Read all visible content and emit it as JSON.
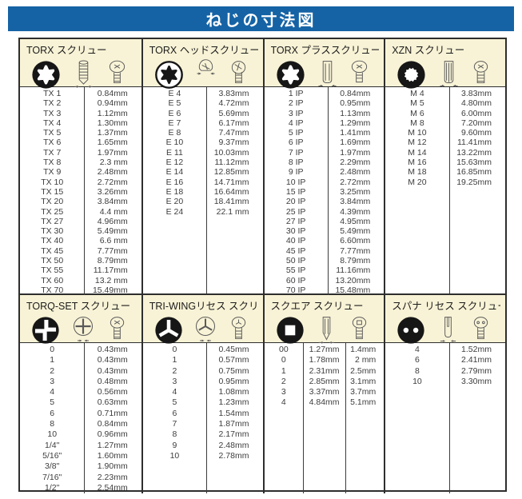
{
  "title": "ねじの寸法図",
  "unit": "mm",
  "colors": {
    "header_blue": "#1563A5",
    "section_header_bg": "#F8F3D6",
    "border": "#2e2e2e",
    "text": "#3d3d3d"
  },
  "sections": [
    {
      "title": "TORX スクリュー",
      "icons": [
        "torx-internal-drive-icon",
        "screw-side-view-icon",
        "screw-head-view-icon"
      ],
      "rows": [
        [
          "TX 1",
          "0.84mm"
        ],
        [
          "TX 2",
          "0.94mm"
        ],
        [
          "TX 3",
          "1.12mm"
        ],
        [
          "TX 4",
          "1.30mm"
        ],
        [
          "TX 5",
          "1.37mm"
        ],
        [
          "TX 6",
          "1.65mm"
        ],
        [
          "TX 7",
          "1.97mm"
        ],
        [
          "TX 8",
          "2.3 mm"
        ],
        [
          "TX 9",
          "2.48mm"
        ],
        [
          "TX 10",
          "2.72mm"
        ],
        [
          "TX 15",
          "3.26mm"
        ],
        [
          "TX 20",
          "3.84mm"
        ],
        [
          "TX 25",
          "4.4 mm"
        ],
        [
          "TX 27",
          "4.96mm"
        ],
        [
          "TX 30",
          "5.49mm"
        ],
        [
          "TX 40",
          "6.6 mm"
        ],
        [
          "TX 45",
          "7.77mm"
        ],
        [
          "TX 50",
          "8.79mm"
        ],
        [
          "TX 55",
          "11.17mm"
        ],
        [
          "TX 60",
          "13.2 mm"
        ],
        [
          "TX 70",
          "15.49mm"
        ]
      ]
    },
    {
      "title": "TORX ヘッドスクリュー",
      "icons": [
        "torx-external-drive-icon",
        "screw-side-view-icon",
        "screw-head-view-icon"
      ],
      "rows": [
        [
          "E 4",
          "3.83mm"
        ],
        [
          "E 5",
          "4.72mm"
        ],
        [
          "E 6",
          "5.69mm"
        ],
        [
          "E 7",
          "6.17mm"
        ],
        [
          "E 8",
          "7.47mm"
        ],
        [
          "E 10",
          "9.37mm"
        ],
        [
          "E 11",
          "10.03mm"
        ],
        [
          "E 12",
          "11.12mm"
        ],
        [
          "E 14",
          "12.85mm"
        ],
        [
          "E 16",
          "14.71mm"
        ],
        [
          "E 18",
          "16.64mm"
        ],
        [
          "E 20",
          "18.41mm"
        ],
        [
          "E 24",
          "22.1 mm"
        ]
      ]
    },
    {
      "title": "TORX プラススクリュー",
      "icons": [
        "torx-internal-drive-icon",
        "screw-side-view-icon",
        "screw-head-view-icon"
      ],
      "rows": [
        [
          "1 IP",
          "0.84mm"
        ],
        [
          "2 IP",
          "0.95mm"
        ],
        [
          "3 IP",
          "1.13mm"
        ],
        [
          "4 IP",
          "1.29mm"
        ],
        [
          "5 IP",
          "1.41mm"
        ],
        [
          "6 IP",
          "1.69mm"
        ],
        [
          "7 IP",
          "1.97mm"
        ],
        [
          "8 IP",
          "2.29mm"
        ],
        [
          "9 IP",
          "2.48mm"
        ],
        [
          "10 IP",
          "2.72mm"
        ],
        [
          "15 IP",
          "3.25mm"
        ],
        [
          "20 IP",
          "3.84mm"
        ],
        [
          "25 IP",
          "4.39mm"
        ],
        [
          "27 IP",
          "4.95mm"
        ],
        [
          "30 IP",
          "5.49mm"
        ],
        [
          "40 IP",
          "6.60mm"
        ],
        [
          "45 IP",
          "7.77mm"
        ],
        [
          "50 IP",
          "8.79mm"
        ],
        [
          "55 IP",
          "11.16mm"
        ],
        [
          "60 IP",
          "13.20mm"
        ],
        [
          "70 IP",
          "15.48mm"
        ]
      ]
    },
    {
      "title": "XZN スクリュー",
      "icons": [
        "xzn-drive-icon",
        "screw-side-view-icon",
        "screw-head-view-icon"
      ],
      "rows": [
        [
          "M 4",
          "3.83mm"
        ],
        [
          "M 5",
          "4.80mm"
        ],
        [
          "M 6",
          "6.00mm"
        ],
        [
          "M 8",
          "7.20mm"
        ],
        [
          "M 10",
          "9.60mm"
        ],
        [
          "M 12",
          "11.41mm"
        ],
        [
          "M 14",
          "13.22mm"
        ],
        [
          "M 16",
          "15.63mm"
        ],
        [
          "M 18",
          "16.85mm"
        ],
        [
          "M 20",
          "19.25mm"
        ]
      ]
    },
    {
      "title": "TORQ-SET スクリュー",
      "icons": [
        "torq-set-drive-icon",
        "torq-set-outline-icon",
        "screw-head-view-icon"
      ],
      "rows": [
        [
          "0",
          "0.43mm"
        ],
        [
          "1",
          "0.43mm"
        ],
        [
          "2",
          "0.43mm"
        ],
        [
          "3",
          "0.48mm"
        ],
        [
          "4",
          "0.56mm"
        ],
        [
          "5",
          "0.63mm"
        ],
        [
          "6",
          "0.71mm"
        ],
        [
          "8",
          "0.84mm"
        ],
        [
          "10",
          "0.96mm"
        ],
        [
          "1/4\"",
          "1.27mm"
        ],
        [
          "5/16\"",
          "1.60mm"
        ],
        [
          "3/8\"",
          "1.90mm"
        ],
        [
          "7/16\"",
          "2.23mm"
        ],
        [
          "1/2\"",
          "2.54mm"
        ]
      ]
    },
    {
      "title": "TRI-WINGリセス スクリュー",
      "icons": [
        "tri-wing-drive-icon",
        "tri-wing-outline-icon",
        "screw-head-view-icon"
      ],
      "rows": [
        [
          "0",
          "0.45mm"
        ],
        [
          "1",
          "0.57mm"
        ],
        [
          "2",
          "0.75mm"
        ],
        [
          "3",
          "0.95mm"
        ],
        [
          "4",
          "1.08mm"
        ],
        [
          "5",
          "1.23mm"
        ],
        [
          "6",
          "1.54mm"
        ],
        [
          "7",
          "1.87mm"
        ],
        [
          "8",
          "2.17mm"
        ],
        [
          "9",
          "2.48mm"
        ],
        [
          "10",
          "2.78mm"
        ]
      ]
    },
    {
      "title": "スクエア スクリュー",
      "icons": [
        "square-drive-icon",
        "screw-side-view-icon",
        "screw-head-view-icon"
      ],
      "rows": [
        [
          "00",
          "1.27mm",
          "1.4mm"
        ],
        [
          "0",
          "1.78mm",
          "2 mm"
        ],
        [
          "1",
          "2.31mm",
          "2.5mm"
        ],
        [
          "2",
          "2.85mm",
          "3.1mm"
        ],
        [
          "3",
          "3.37mm",
          "3.7mm"
        ],
        [
          "4",
          "4.84mm",
          "5.1mm"
        ]
      ]
    },
    {
      "title": "スパナ リセス スクリュー",
      "icons": [
        "spanner-drive-icon",
        "screw-side-view-icon",
        "screw-head-view-icon"
      ],
      "rows": [
        [
          "4",
          "1.52mm"
        ],
        [
          "6",
          "2.41mm"
        ],
        [
          "8",
          "2.79mm"
        ],
        [
          "10",
          "3.30mm"
        ]
      ]
    }
  ]
}
